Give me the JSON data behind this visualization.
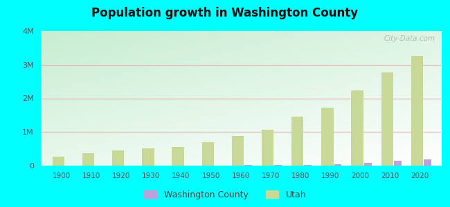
{
  "title": "Population growth in Washington County",
  "background_color": "#00FFFF",
  "years": [
    1900,
    1910,
    1920,
    1930,
    1940,
    1950,
    1960,
    1970,
    1980,
    1990,
    2000,
    2010,
    2020
  ],
  "utah_population": [
    276749,
    373351,
    449396,
    507847,
    550310,
    688862,
    890627,
    1059273,
    1461037,
    1722850,
    2233169,
    2763885,
    3271616
  ],
  "washington_county": [
    3004,
    3729,
    6476,
    8765,
    9836,
    9469,
    10271,
    13669,
    26065,
    48560,
    90354,
    138115,
    180279
  ],
  "utah_color": "#c8d896",
  "washington_color": "#c0a0d8",
  "ylim": [
    0,
    4000000
  ],
  "yticks": [
    0,
    1000000,
    2000000,
    3000000,
    4000000
  ],
  "ytick_labels": [
    "0",
    "1M",
    "2M",
    "3M",
    "4M"
  ],
  "watermark": "City-Data.com",
  "legend_county_label": "Washington County",
  "legend_utah_label": "Utah",
  "grid_color": "#e0b0b0",
  "utah_bar_width": 4.0,
  "wash_bar_width": 2.5
}
